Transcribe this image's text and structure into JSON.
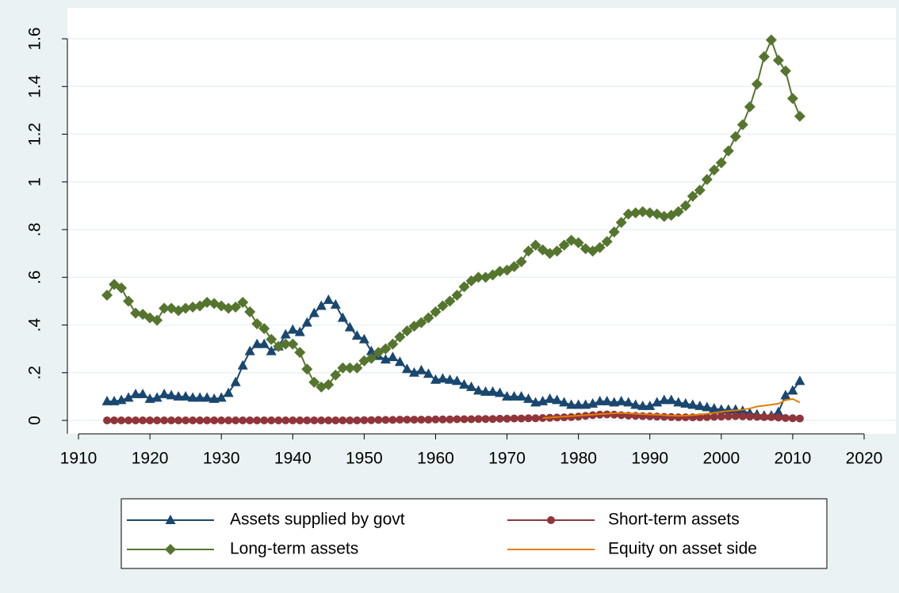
{
  "chart_data": {
    "type": "line",
    "x": [
      1914,
      1915,
      1916,
      1917,
      1918,
      1919,
      1920,
      1921,
      1922,
      1923,
      1924,
      1925,
      1926,
      1927,
      1928,
      1929,
      1930,
      1931,
      1932,
      1933,
      1934,
      1935,
      1936,
      1937,
      1938,
      1939,
      1940,
      1941,
      1942,
      1943,
      1944,
      1945,
      1946,
      1947,
      1948,
      1949,
      1950,
      1951,
      1952,
      1953,
      1954,
      1955,
      1956,
      1957,
      1958,
      1959,
      1960,
      1961,
      1962,
      1963,
      1964,
      1965,
      1966,
      1967,
      1968,
      1969,
      1970,
      1971,
      1972,
      1973,
      1974,
      1975,
      1976,
      1977,
      1978,
      1979,
      1980,
      1981,
      1982,
      1983,
      1984,
      1985,
      1986,
      1987,
      1988,
      1989,
      1990,
      1991,
      1992,
      1993,
      1994,
      1995,
      1996,
      1997,
      1998,
      1999,
      2000,
      2001,
      2002,
      2003,
      2004,
      2005,
      2006,
      2007,
      2008,
      2009,
      2010,
      2011
    ],
    "series": [
      {
        "name": "Assets supplied by govt",
        "color": "#1a476f",
        "marker": "triangle",
        "values": [
          0.08,
          0.08,
          0.085,
          0.095,
          0.11,
          0.11,
          0.09,
          0.095,
          0.11,
          0.105,
          0.1,
          0.1,
          0.095,
          0.095,
          0.095,
          0.09,
          0.095,
          0.115,
          0.16,
          0.23,
          0.29,
          0.32,
          0.32,
          0.29,
          0.31,
          0.36,
          0.38,
          0.37,
          0.41,
          0.45,
          0.48,
          0.505,
          0.485,
          0.43,
          0.39,
          0.355,
          0.34,
          0.29,
          0.27,
          0.255,
          0.265,
          0.245,
          0.215,
          0.2,
          0.21,
          0.195,
          0.17,
          0.175,
          0.17,
          0.165,
          0.15,
          0.14,
          0.125,
          0.12,
          0.12,
          0.115,
          0.1,
          0.1,
          0.1,
          0.09,
          0.075,
          0.08,
          0.09,
          0.085,
          0.075,
          0.065,
          0.065,
          0.065,
          0.07,
          0.08,
          0.08,
          0.075,
          0.08,
          0.075,
          0.065,
          0.06,
          0.06,
          0.075,
          0.085,
          0.085,
          0.075,
          0.07,
          0.065,
          0.06,
          0.055,
          0.05,
          0.045,
          0.045,
          0.045,
          0.04,
          0.03,
          0.025,
          0.02,
          0.02,
          0.035,
          0.105,
          0.125,
          0.165
        ]
      },
      {
        "name": "Short-term assets",
        "color": "#90353b",
        "marker": "circle",
        "values": [
          0,
          0,
          0,
          0,
          0,
          0,
          0,
          0,
          0,
          0,
          0,
          0,
          0,
          0,
          0,
          0,
          0,
          0,
          0,
          0,
          0,
          0,
          0,
          0,
          0,
          0,
          0,
          0,
          0,
          0,
          0,
          0,
          0,
          0,
          0,
          0,
          0.001,
          0.001,
          0.002,
          0.002,
          0.002,
          0.003,
          0.003,
          0.003,
          0.003,
          0.003,
          0.004,
          0.004,
          0.004,
          0.005,
          0.005,
          0.005,
          0.006,
          0.006,
          0.006,
          0.007,
          0.007,
          0.008,
          0.008,
          0.009,
          0.009,
          0.01,
          0.011,
          0.012,
          0.013,
          0.014,
          0.016,
          0.019,
          0.022,
          0.024,
          0.025,
          0.024,
          0.022,
          0.02,
          0.019,
          0.018,
          0.017,
          0.016,
          0.015,
          0.014,
          0.013,
          0.013,
          0.013,
          0.013,
          0.014,
          0.015,
          0.016,
          0.017,
          0.018,
          0.017,
          0.016,
          0.015,
          0.014,
          0.014,
          0.012,
          0.01,
          0.009,
          0.008
        ]
      },
      {
        "name": "Long-term assets",
        "color": "#55752f",
        "marker": "diamond",
        "values": [
          0.525,
          0.57,
          0.555,
          0.5,
          0.45,
          0.445,
          0.43,
          0.42,
          0.47,
          0.47,
          0.46,
          0.47,
          0.475,
          0.48,
          0.495,
          0.49,
          0.48,
          0.47,
          0.475,
          0.495,
          0.455,
          0.405,
          0.385,
          0.34,
          0.31,
          0.32,
          0.32,
          0.285,
          0.215,
          0.16,
          0.14,
          0.15,
          0.19,
          0.22,
          0.22,
          0.22,
          0.25,
          0.26,
          0.285,
          0.3,
          0.32,
          0.35,
          0.375,
          0.395,
          0.41,
          0.43,
          0.455,
          0.48,
          0.5,
          0.525,
          0.56,
          0.585,
          0.6,
          0.6,
          0.61,
          0.625,
          0.63,
          0.645,
          0.665,
          0.71,
          0.735,
          0.715,
          0.7,
          0.71,
          0.735,
          0.755,
          0.745,
          0.72,
          0.71,
          0.725,
          0.75,
          0.79,
          0.83,
          0.865,
          0.87,
          0.875,
          0.87,
          0.865,
          0.855,
          0.86,
          0.875,
          0.9,
          0.94,
          0.965,
          1.01,
          1.05,
          1.08,
          1.13,
          1.19,
          1.24,
          1.315,
          1.41,
          1.525,
          1.595,
          1.51,
          1.465,
          1.35,
          1.275
        ]
      },
      {
        "name": "Equity on asset side",
        "color": "#e37e00",
        "values": [
          null,
          null,
          null,
          null,
          null,
          null,
          null,
          null,
          null,
          null,
          null,
          null,
          null,
          null,
          null,
          null,
          null,
          null,
          null,
          null,
          null,
          null,
          null,
          null,
          null,
          null,
          null,
          null,
          null,
          null,
          null,
          null,
          null,
          null,
          null,
          null,
          null,
          null,
          null,
          null,
          null,
          null,
          null,
          null,
          null,
          null,
          null,
          null,
          null,
          null,
          null,
          null,
          null,
          null,
          null,
          null,
          null,
          null,
          null,
          null,
          null,
          0.01,
          0.012,
          0.014,
          0.016,
          0.018,
          0.02,
          0.022,
          0.024,
          0.026,
          0.028,
          0.03,
          0.031,
          0.03,
          0.028,
          0.026,
          0.025,
          0.024,
          0.022,
          0.02,
          0.019,
          0.02,
          0.022,
          0.025,
          0.028,
          0.032,
          0.036,
          0.04,
          0.042,
          0.045,
          0.05,
          0.058,
          0.062,
          0.066,
          0.07,
          0.085,
          0.09,
          0.075
        ]
      }
    ],
    "xlim": [
      1910,
      2020
    ],
    "xticks": [
      1910,
      1920,
      1930,
      1940,
      1950,
      1960,
      1970,
      1980,
      1990,
      2000,
      2010,
      2020
    ],
    "ylim": [
      0,
      1.6
    ],
    "yticks": [
      0,
      {
        "value": 0.2,
        "label": ".2"
      },
      {
        "value": 0.4,
        "label": ".4"
      },
      {
        "value": 0.6,
        "label": ".6"
      },
      {
        "value": 0.8,
        "label": ".8"
      },
      1,
      1.2,
      1.4,
      1.6
    ],
    "grid": true,
    "legend": "bottom"
  }
}
